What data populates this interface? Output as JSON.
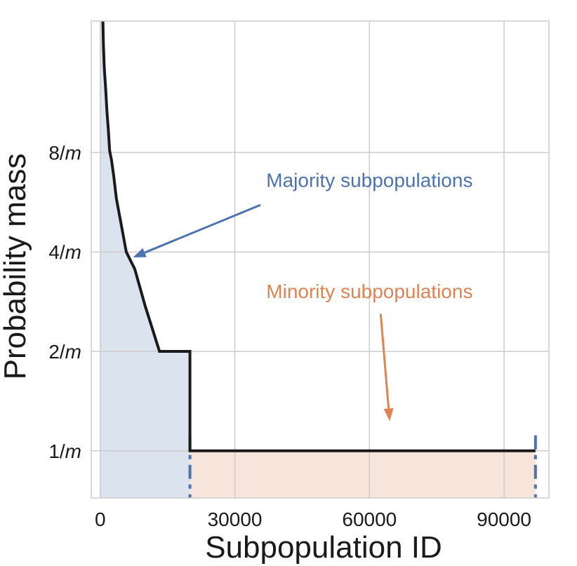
{
  "chart_data": {
    "type": "line",
    "title": "",
    "xlabel": "Subpopulation ID",
    "ylabel": "Probability mass",
    "grid": true,
    "xlim": [
      -2000,
      100000
    ],
    "ylim": [
      0.72,
      20
    ],
    "yscale": "log2",
    "x_ticks": [
      {
        "value": 0,
        "label": "0"
      },
      {
        "value": 30000,
        "label": "30000"
      },
      {
        "value": 60000,
        "label": "60000"
      },
      {
        "value": 90000,
        "label": "90000"
      }
    ],
    "y_ticks": [
      {
        "value": 1,
        "label_num": "1/",
        "label_var": "m"
      },
      {
        "value": 2,
        "label_num": "2/",
        "label_var": "m"
      },
      {
        "value": 4,
        "label_num": "4/",
        "label_var": "m"
      },
      {
        "value": 8,
        "label_num": "8/",
        "label_var": "m"
      }
    ],
    "series": [
      {
        "color": "#1a1a1a",
        "x": [
          600,
          700,
          700,
          900,
          900,
          1200,
          1200,
          1500,
          1500,
          1800,
          1800,
          2100,
          2100,
          2500,
          2500,
          3000,
          3000,
          3600,
          3600,
          4500,
          4500,
          5800,
          5800,
          7700,
          7700,
          10000,
          10000,
          13200,
          13200,
          17000,
          17000,
          20000,
          20000,
          97000
        ],
        "y": [
          20,
          17,
          17,
          14.5,
          14.5,
          12.5,
          12.5,
          10.6,
          10.6,
          9.4,
          9.4,
          8.1,
          8.1,
          7.6,
          7.6,
          6.8,
          6.8,
          5.8,
          5.8,
          5.0,
          5.0,
          4.0,
          4.0,
          3.55,
          3.55,
          2.75,
          2.75,
          2.0,
          2.0,
          2.0,
          2.0,
          2.0,
          1.0,
          1.0
        ]
      }
    ],
    "shaded_regions": [
      {
        "x_start": 0,
        "x_end": 20000,
        "color": "#dbe3ee"
      },
      {
        "x_start": 20000,
        "x_end": 97000,
        "color": "#f7e4db"
      }
    ],
    "boundary_markers": [
      20000,
      97000
    ],
    "marker_color": "#4c72b0",
    "annotations": [
      {
        "text": "Majority subpopulations",
        "color": "#4c72b0",
        "text_x": 37000,
        "text_y": 6.3,
        "arrow_from_x": 35700,
        "arrow_from_y": 5.55,
        "arrow_to_x": 7300,
        "arrow_to_y": 3.85
      },
      {
        "text": "Minority subpopulations",
        "color": "#dd8452",
        "text_x": 37000,
        "text_y": 2.9,
        "arrow_from_x": 62500,
        "arrow_from_y": 2.6,
        "arrow_to_x": 64500,
        "arrow_to_y": 1.23
      }
    ]
  }
}
